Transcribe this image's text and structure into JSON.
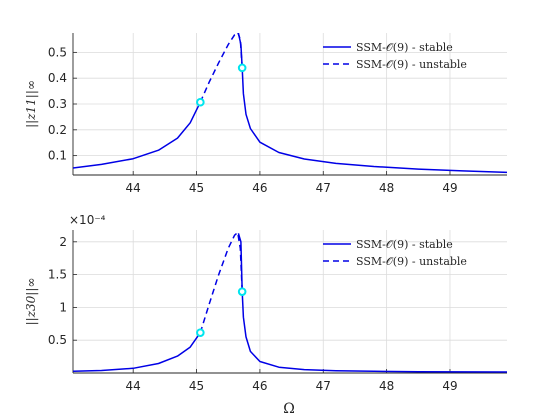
{
  "xlabel": "Ω",
  "colors": {
    "line": "#0000e6",
    "marker": "#00e5ee",
    "grid": "#dcdcdc",
    "axis": "#262626"
  },
  "chart_data": [
    {
      "type": "line",
      "ylabel": "||z11||∞",
      "y_exponent": "",
      "xlim": [
        43.05,
        49.9
      ],
      "ylim": [
        0.025,
        0.575
      ],
      "x_ticks": [
        "44",
        "45",
        "46",
        "47",
        "48",
        "49"
      ],
      "y_ticks": [
        "0.1",
        "0.2",
        "0.3",
        "0.4",
        "0.5"
      ],
      "legend": {
        "position": "top-right",
        "entries": [
          "SSM-𝒪(9) - stable",
          "SSM-𝒪(9) - unstable"
        ]
      },
      "grid": true,
      "series": [
        {
          "name": "SSM-𝒪(9) - stable",
          "style": "solid",
          "x": [
            43.05,
            43.5,
            44.0,
            44.4,
            44.7,
            44.9,
            45.06
          ],
          "y": [
            0.052,
            0.066,
            0.088,
            0.121,
            0.168,
            0.227,
            0.307
          ]
        },
        {
          "name": "SSM-𝒪(9) - unstable",
          "style": "dashed",
          "x": [
            45.06,
            45.2,
            45.35,
            45.5,
            45.6,
            45.65,
            45.69,
            45.72
          ],
          "y": [
            0.307,
            0.385,
            0.46,
            0.53,
            0.568,
            0.578,
            0.55,
            0.44
          ]
        },
        {
          "name": "SSM-𝒪(9) - stable",
          "style": "solid",
          "x": [
            45.66,
            45.7,
            45.72,
            45.74,
            45.78,
            45.85,
            46.0,
            46.3,
            46.7,
            47.2,
            47.8,
            48.5,
            49.2,
            49.9
          ],
          "y": [
            0.575,
            0.53,
            0.44,
            0.34,
            0.26,
            0.205,
            0.152,
            0.112,
            0.087,
            0.07,
            0.058,
            0.048,
            0.041,
            0.035
          ]
        }
      ],
      "markers": [
        {
          "x": 45.06,
          "y": 0.307
        },
        {
          "x": 45.72,
          "y": 0.44
        }
      ]
    },
    {
      "type": "line",
      "ylabel": "||z30||∞",
      "y_exponent": "×10⁻⁴",
      "xlim": [
        43.05,
        49.9
      ],
      "ylim": [
        0.0,
        0.000218
      ],
      "x_ticks": [
        "44",
        "45",
        "46",
        "47",
        "48",
        "49"
      ],
      "y_ticks": [
        "0.5",
        "1",
        "1.5",
        "2"
      ],
      "legend": {
        "position": "top-right",
        "entries": [
          "SSM-𝒪(9) - stable",
          "SSM-𝒪(9) - unstable"
        ]
      },
      "grid": true,
      "series": [
        {
          "name": "SSM-𝒪(9) - stable",
          "style": "solid",
          "x": [
            43.05,
            43.5,
            44.0,
            44.4,
            44.7,
            44.9,
            45.06
          ],
          "y": [
            2.8e-06,
            3.8e-06,
            7.2e-06,
            1.45e-05,
            2.58e-05,
            3.95e-05,
            6.15e-05
          ]
        },
        {
          "name": "SSM-𝒪(9) - unstable",
          "style": "dashed",
          "x": [
            45.06,
            45.2,
            45.35,
            45.5,
            45.6,
            45.65,
            45.69,
            45.72
          ],
          "y": [
            6.15e-05,
            0.000105,
            0.00015,
            0.00019,
            0.00021,
            0.000214,
            0.00019,
            0.000124
          ]
        },
        {
          "name": "SSM-𝒪(9) - stable",
          "style": "solid",
          "x": [
            45.66,
            45.7,
            45.72,
            45.74,
            45.78,
            45.85,
            46.0,
            46.3,
            46.7,
            47.2,
            47.8,
            48.5,
            49.2,
            49.9
          ],
          "y": [
            0.000213,
            0.0002,
            0.000124,
            8.5e-05,
            5.5e-05,
            3.3e-05,
            1.75e-05,
            8.8e-06,
            5.2e-06,
            3.5e-06,
            2.6e-06,
            2e-06,
            1.7e-06,
            1.5e-06
          ]
        }
      ],
      "markers": [
        {
          "x": 45.06,
          "y": 6.15e-05
        },
        {
          "x": 45.72,
          "y": 0.000124
        }
      ]
    }
  ]
}
